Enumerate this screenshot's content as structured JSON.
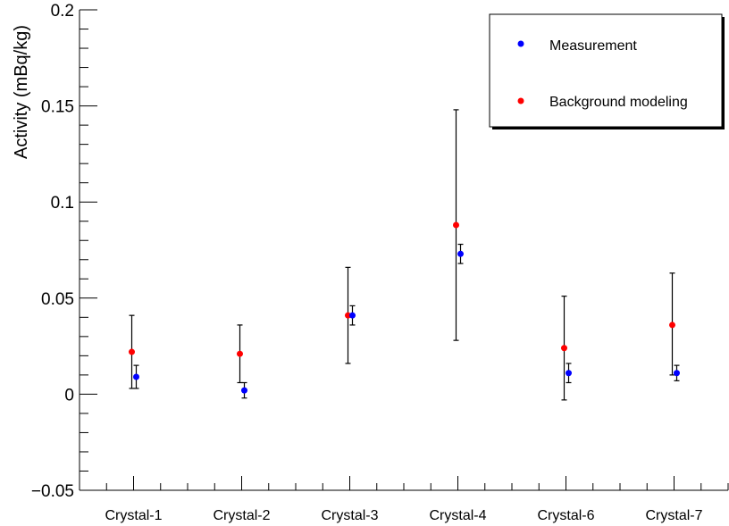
{
  "chart_data": {
    "type": "scatter",
    "ylabel": "Activity (mBq/kg)",
    "ylim": [
      -0.05,
      0.2
    ],
    "yticks": [
      -0.05,
      0,
      0.05,
      0.1,
      0.15,
      0.2
    ],
    "ytick_labels": [
      "−0.05",
      "0",
      "0.05",
      "0.1",
      "0.15",
      "0.2"
    ],
    "categories": [
      "Crystal-1",
      "Crystal-2",
      "Crystal-3",
      "Crystal-4",
      "Crystal-6",
      "Crystal-7"
    ],
    "grid": false,
    "legend_position": "top-right",
    "series": [
      {
        "name": "Measurement",
        "color": "#0000ff",
        "values": [
          0.009,
          0.002,
          0.041,
          0.073,
          0.011,
          0.011
        ],
        "err_low": [
          0.006,
          0.004,
          0.005,
          0.005,
          0.005,
          0.004
        ],
        "err_high": [
          0.006,
          0.004,
          0.005,
          0.005,
          0.005,
          0.004
        ]
      },
      {
        "name": "Background modeling",
        "color": "#ff0000",
        "values": [
          0.022,
          0.021,
          0.041,
          0.088,
          0.024,
          0.036
        ],
        "err_low": [
          0.019,
          0.015,
          0.025,
          0.06,
          0.027,
          0.026
        ],
        "err_high": [
          0.019,
          0.015,
          0.025,
          0.06,
          0.027,
          0.027
        ]
      }
    ]
  }
}
